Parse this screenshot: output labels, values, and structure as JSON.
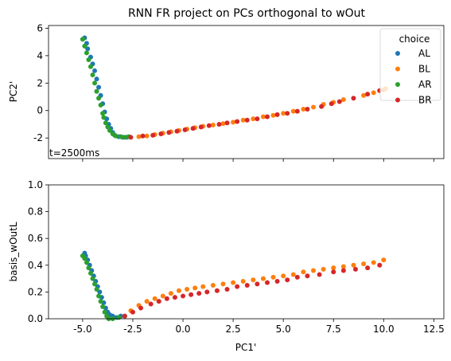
{
  "colors": {
    "AL": "#1f77b4",
    "BL": "#ff7f0e",
    "AR": "#2ca02c",
    "BR": "#d62728"
  },
  "chart_data": [
    {
      "type": "scatter",
      "title": "RNN FR project on PCs orthogonal to wOut",
      "xlabel": "",
      "ylabel": "PC2'",
      "xlim": [
        -6.7,
        13.0
      ],
      "ylim": [
        -3.5,
        6.2
      ],
      "yticks": [
        -2,
        0,
        2,
        4,
        6
      ],
      "xticks": [
        -5.0,
        -2.5,
        0.0,
        2.5,
        5.0,
        7.5,
        10.0,
        12.5
      ],
      "xtick_labels_visible": false,
      "annotation": "t=2500ms",
      "legend": {
        "title": "choice",
        "placement": "top-right",
        "entries": [
          "AL",
          "BL",
          "AR",
          "BR"
        ]
      },
      "series": [
        {
          "name": "AL",
          "points": [
            [
              -4.9,
              5.3
            ],
            [
              -4.8,
              4.9
            ],
            [
              -4.75,
              4.5
            ],
            [
              -4.6,
              3.9
            ],
            [
              -4.5,
              3.4
            ],
            [
              -4.4,
              2.9
            ],
            [
              -4.3,
              2.3
            ],
            [
              -4.2,
              1.7
            ],
            [
              -4.1,
              1.1
            ],
            [
              -4.0,
              0.5
            ],
            [
              -3.9,
              -0.1
            ],
            [
              -3.8,
              -0.6
            ],
            [
              -3.7,
              -1.0
            ],
            [
              -3.6,
              -1.3
            ],
            [
              -3.5,
              -1.6
            ],
            [
              -3.4,
              -1.8
            ],
            [
              -3.2,
              -1.9
            ],
            [
              -3.0,
              -1.95
            ],
            [
              -2.8,
              -1.95
            ]
          ]
        },
        {
          "name": "BL",
          "points": [
            [
              -2.2,
              -1.9
            ],
            [
              -1.8,
              -1.85
            ],
            [
              -1.4,
              -1.75
            ],
            [
              -1.0,
              -1.65
            ],
            [
              -0.6,
              -1.55
            ],
            [
              -0.2,
              -1.45
            ],
            [
              0.2,
              -1.35
            ],
            [
              0.6,
              -1.25
            ],
            [
              1.0,
              -1.15
            ],
            [
              1.5,
              -1.05
            ],
            [
              2.0,
              -0.95
            ],
            [
              2.5,
              -0.85
            ],
            [
              3.0,
              -0.7
            ],
            [
              3.5,
              -0.6
            ],
            [
              4.0,
              -0.45
            ],
            [
              4.5,
              -0.35
            ],
            [
              5.0,
              -0.2
            ],
            [
              5.5,
              -0.05
            ],
            [
              6.0,
              0.1
            ],
            [
              6.5,
              0.25
            ],
            [
              7.0,
              0.45
            ],
            [
              7.5,
              0.6
            ],
            [
              8.0,
              0.8
            ],
            [
              9.0,
              1.1
            ],
            [
              9.5,
              1.3
            ],
            [
              10.0,
              1.5
            ],
            [
              10.1,
              1.6
            ]
          ]
        },
        {
          "name": "AR",
          "points": [
            [
              -5.0,
              5.2
            ],
            [
              -4.9,
              4.7
            ],
            [
              -4.8,
              4.2
            ],
            [
              -4.7,
              3.7
            ],
            [
              -4.6,
              3.2
            ],
            [
              -4.5,
              2.6
            ],
            [
              -4.4,
              2.0
            ],
            [
              -4.3,
              1.4
            ],
            [
              -4.2,
              0.9
            ],
            [
              -4.1,
              0.4
            ],
            [
              -4.0,
              -0.2
            ],
            [
              -3.95,
              -0.5
            ],
            [
              -3.85,
              -0.9
            ],
            [
              -3.75,
              -1.2
            ],
            [
              -3.65,
              -1.45
            ],
            [
              -3.5,
              -1.7
            ],
            [
              -3.35,
              -1.85
            ],
            [
              -3.1,
              -1.9
            ],
            [
              -2.9,
              -1.95
            ],
            [
              -2.7,
              -1.9
            ]
          ]
        },
        {
          "name": "BR",
          "points": [
            [
              -2.6,
              -1.95
            ],
            [
              -2.0,
              -1.85
            ],
            [
              -1.5,
              -1.8
            ],
            [
              -1.1,
              -1.7
            ],
            [
              -0.7,
              -1.6
            ],
            [
              -0.3,
              -1.5
            ],
            [
              0.1,
              -1.4
            ],
            [
              0.5,
              -1.3
            ],
            [
              0.9,
              -1.2
            ],
            [
              1.3,
              -1.1
            ],
            [
              1.8,
              -1.0
            ],
            [
              2.2,
              -0.9
            ],
            [
              2.7,
              -0.8
            ],
            [
              3.2,
              -0.7
            ],
            [
              3.7,
              -0.6
            ],
            [
              4.2,
              -0.45
            ],
            [
              4.7,
              -0.3
            ],
            [
              5.2,
              -0.2
            ],
            [
              5.7,
              -0.05
            ],
            [
              6.2,
              0.1
            ],
            [
              6.9,
              0.3
            ],
            [
              7.4,
              0.5
            ],
            [
              7.8,
              0.65
            ],
            [
              8.5,
              0.9
            ],
            [
              9.2,
              1.2
            ],
            [
              9.8,
              1.45
            ]
          ]
        }
      ]
    },
    {
      "type": "scatter",
      "title": "",
      "xlabel": "PC1'",
      "ylabel": "basis_wOutL",
      "xlim": [
        -6.7,
        13.0
      ],
      "ylim": [
        0.0,
        1.0
      ],
      "yticks": [
        0.0,
        0.2,
        0.4,
        0.6,
        0.8,
        1.0
      ],
      "xticks": [
        -5.0,
        -2.5,
        0.0,
        2.5,
        5.0,
        7.5,
        10.0,
        12.5
      ],
      "series": [
        {
          "name": "AL",
          "points": [
            [
              -4.9,
              0.49
            ],
            [
              -4.85,
              0.47
            ],
            [
              -4.75,
              0.44
            ],
            [
              -4.65,
              0.4
            ],
            [
              -4.55,
              0.36
            ],
            [
              -4.45,
              0.32
            ],
            [
              -4.35,
              0.28
            ],
            [
              -4.25,
              0.24
            ],
            [
              -4.15,
              0.2
            ],
            [
              -4.05,
              0.16
            ],
            [
              -3.95,
              0.12
            ],
            [
              -3.85,
              0.08
            ],
            [
              -3.75,
              0.05
            ],
            [
              -3.65,
              0.03
            ],
            [
              -3.5,
              0.02
            ],
            [
              -3.3,
              0.01
            ],
            [
              -3.1,
              0.02
            ]
          ]
        },
        {
          "name": "BL",
          "points": [
            [
              -2.6,
              0.06
            ],
            [
              -2.2,
              0.1
            ],
            [
              -1.8,
              0.13
            ],
            [
              -1.4,
              0.15
            ],
            [
              -1.0,
              0.17
            ],
            [
              -0.6,
              0.19
            ],
            [
              -0.2,
              0.21
            ],
            [
              0.2,
              0.22
            ],
            [
              0.6,
              0.23
            ],
            [
              1.0,
              0.24
            ],
            [
              1.5,
              0.25
            ],
            [
              2.0,
              0.26
            ],
            [
              2.5,
              0.27
            ],
            [
              3.0,
              0.28
            ],
            [
              3.5,
              0.29
            ],
            [
              4.0,
              0.3
            ],
            [
              4.5,
              0.31
            ],
            [
              5.0,
              0.32
            ],
            [
              5.5,
              0.33
            ],
            [
              6.0,
              0.35
            ],
            [
              6.5,
              0.36
            ],
            [
              7.0,
              0.37
            ],
            [
              7.5,
              0.38
            ],
            [
              8.0,
              0.39
            ],
            [
              8.5,
              0.4
            ],
            [
              9.0,
              0.41
            ],
            [
              9.5,
              0.42
            ],
            [
              10.0,
              0.44
            ]
          ]
        },
        {
          "name": "AR",
          "points": [
            [
              -5.0,
              0.47
            ],
            [
              -4.9,
              0.45
            ],
            [
              -4.8,
              0.42
            ],
            [
              -4.7,
              0.38
            ],
            [
              -4.6,
              0.34
            ],
            [
              -4.5,
              0.3
            ],
            [
              -4.4,
              0.26
            ],
            [
              -4.3,
              0.22
            ],
            [
              -4.2,
              0.17
            ],
            [
              -4.1,
              0.13
            ],
            [
              -4.0,
              0.09
            ],
            [
              -3.9,
              0.05
            ],
            [
              -3.8,
              0.02
            ],
            [
              -3.7,
              0.0
            ],
            [
              -3.5,
              0.0
            ],
            [
              -3.2,
              0.01
            ],
            [
              -2.9,
              0.02
            ]
          ]
        },
        {
          "name": "BR",
          "points": [
            [
              -2.9,
              0.02
            ],
            [
              -2.5,
              0.05
            ],
            [
              -2.1,
              0.08
            ],
            [
              -1.6,
              0.11
            ],
            [
              -1.2,
              0.13
            ],
            [
              -0.8,
              0.15
            ],
            [
              -0.4,
              0.16
            ],
            [
              0.0,
              0.17
            ],
            [
              0.4,
              0.18
            ],
            [
              0.8,
              0.19
            ],
            [
              1.2,
              0.2
            ],
            [
              1.7,
              0.21
            ],
            [
              2.2,
              0.22
            ],
            [
              2.7,
              0.24
            ],
            [
              3.2,
              0.25
            ],
            [
              3.7,
              0.26
            ],
            [
              4.2,
              0.27
            ],
            [
              4.7,
              0.28
            ],
            [
              5.2,
              0.29
            ],
            [
              5.7,
              0.31
            ],
            [
              6.2,
              0.32
            ],
            [
              6.8,
              0.33
            ],
            [
              7.5,
              0.35
            ],
            [
              8.0,
              0.36
            ],
            [
              8.6,
              0.37
            ],
            [
              9.2,
              0.38
            ],
            [
              9.8,
              0.4
            ]
          ]
        }
      ]
    }
  ]
}
